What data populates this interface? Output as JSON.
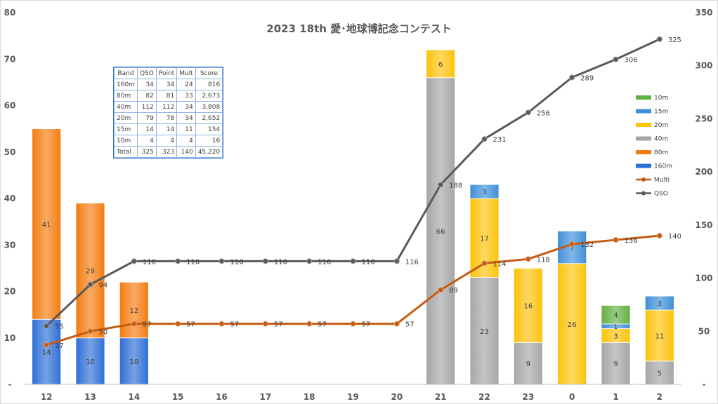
{
  "chart_data": {
    "type": "bar",
    "title": "2023 18th 愛･地球博記念コンテスト",
    "categories": [
      "12",
      "13",
      "14",
      "15",
      "16",
      "17",
      "18",
      "19",
      "20",
      "21",
      "22",
      "23",
      "0",
      "1",
      "2"
    ],
    "y_left": {
      "ticks": [
        "-",
        "10",
        "20",
        "30",
        "40",
        "50",
        "60",
        "70",
        "80"
      ],
      "range": [
        0,
        80
      ]
    },
    "y_right": {
      "ticks": [
        "-",
        "50",
        "100",
        "150",
        "200",
        "250",
        "300",
        "350"
      ],
      "range": [
        0,
        350
      ]
    },
    "stack_order": [
      "160m",
      "80m",
      "40m",
      "20m",
      "15m",
      "10m"
    ],
    "series": [
      {
        "name": "160m",
        "color": "#2e6fd6",
        "values": [
          14,
          10,
          10,
          0,
          0,
          0,
          0,
          0,
          0,
          0,
          0,
          0,
          0,
          0,
          0
        ],
        "labels": [
          "14",
          "10",
          "10",
          "",
          "",
          "",
          "",
          "",
          "",
          "",
          "",
          "",
          "",
          "",
          ""
        ]
      },
      {
        "name": "80m",
        "color": "#f47c10",
        "values": [
          41,
          29,
          12,
          0,
          0,
          0,
          0,
          0,
          0,
          0,
          0,
          0,
          0,
          0,
          0
        ],
        "labels": [
          "41",
          "29",
          "12",
          "",
          "",
          "",
          "",
          "",
          "",
          "",
          "",
          "",
          "",
          "",
          ""
        ]
      },
      {
        "name": "40m",
        "color": "#a6a6a6",
        "values": [
          0,
          0,
          0,
          0,
          0,
          0,
          0,
          0,
          0,
          66,
          23,
          9,
          0,
          9,
          5
        ],
        "labels": [
          "",
          "",
          "",
          "",
          "",
          "",
          "",
          "",
          "",
          "66",
          "23",
          "9",
          "",
          "9",
          "5"
        ]
      },
      {
        "name": "20m",
        "color": "#fcc30a",
        "values": [
          0,
          0,
          0,
          0,
          0,
          0,
          0,
          0,
          0,
          6,
          17,
          16,
          26,
          3,
          11
        ],
        "labels": [
          "",
          "",
          "",
          "",
          "",
          "",
          "",
          "",
          "",
          "6",
          "17",
          "16",
          "26",
          "3",
          "11"
        ]
      },
      {
        "name": "15m",
        "color": "#3d8fd8",
        "values": [
          0,
          0,
          0,
          0,
          0,
          0,
          0,
          0,
          0,
          0,
          3,
          0,
          7,
          1,
          3
        ],
        "labels": [
          "",
          "",
          "",
          "",
          "",
          "",
          "",
          "",
          "",
          "",
          "3",
          "",
          "7",
          "1",
          "3"
        ]
      },
      {
        "name": "10m",
        "color": "#62b142",
        "values": [
          0,
          0,
          0,
          0,
          0,
          0,
          0,
          0,
          0,
          0,
          0,
          0,
          0,
          4,
          0
        ],
        "labels": [
          "",
          "",
          "",
          "",
          "",
          "",
          "",
          "",
          "",
          "",
          "",
          "",
          "",
          "4",
          ""
        ]
      }
    ],
    "lines": [
      {
        "name": "Multi",
        "color": "#c55a11",
        "axis": "right",
        "values": [
          37,
          50,
          57,
          57,
          57,
          57,
          57,
          57,
          57,
          89,
          114,
          118,
          132,
          136,
          140
        ],
        "labels": [
          "37",
          "50",
          "57",
          "57",
          "57",
          "57",
          "57",
          "57",
          "57",
          "89",
          "114",
          "118",
          "132",
          "136",
          "140"
        ]
      },
      {
        "name": "QSO",
        "color": "#595959",
        "axis": "right",
        "values": [
          55,
          94,
          116,
          116,
          116,
          116,
          116,
          116,
          116,
          188,
          231,
          256,
          289,
          306,
          325
        ],
        "labels": [
          "55",
          "94",
          "116",
          "116",
          "116",
          "116",
          "116",
          "116",
          "116",
          "188",
          "231",
          "256",
          "289",
          "306",
          "325"
        ]
      }
    ],
    "legend": {
      "placement": "right",
      "entries": [
        "10m",
        "15m",
        "20m",
        "40m",
        "80m",
        "160m",
        "Multi",
        "QSO"
      ]
    },
    "grid": false
  },
  "score_table": {
    "headers": [
      "Band",
      "QSO",
      "Point",
      "Mult",
      "Score"
    ],
    "rows": [
      [
        "160m",
        "34",
        "34",
        "24",
        "816"
      ],
      [
        "80m",
        "82",
        "81",
        "33",
        "2,673"
      ],
      [
        "40m",
        "112",
        "112",
        "34",
        "3,808"
      ],
      [
        "20m",
        "79",
        "78",
        "34",
        "2,652"
      ],
      [
        "15m",
        "14",
        "14",
        "11",
        "154"
      ],
      [
        "10m",
        "4",
        "4",
        "4",
        "16"
      ],
      [
        "Total",
        "325",
        "323",
        "140",
        "45,220"
      ]
    ]
  }
}
